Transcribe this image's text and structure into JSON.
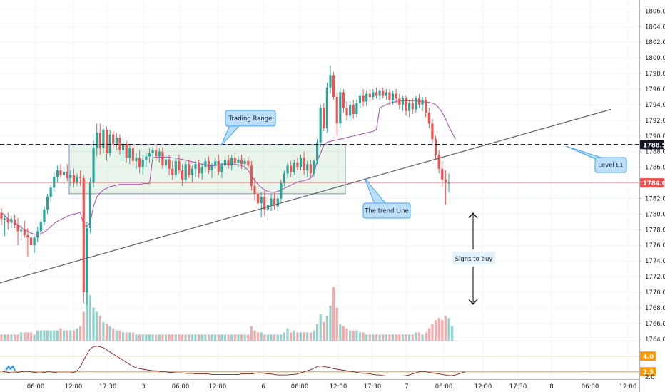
{
  "chart_data": {
    "type": "candlestick",
    "y_axis": {
      "range": [
        1763.8,
        1807.4
      ],
      "ticks": [
        "1806.0",
        "1804.0",
        "1802.0",
        "1800.0",
        "1798.0",
        "1796.0",
        "1794.0",
        "1792.0",
        "1790.0",
        "1788.0",
        "1786.0",
        "1784.0",
        "1782.0",
        "1780.0",
        "1778.0",
        "1776.0",
        "1774.0",
        "1772.0",
        "1770.0",
        "1768.0",
        "1766.0",
        "1764.0"
      ]
    },
    "x_axis": {
      "ticks": [
        "06:00",
        "12:00",
        "17:30",
        "3",
        "06:00",
        "12:00",
        "6",
        "06:00",
        "12:00",
        "17:30",
        "7",
        "06:00",
        "12:00",
        "17:30",
        "8",
        "06:00",
        "12:00"
      ]
    },
    "price_tags": [
      {
        "label": "1788.9",
        "value": 1788.9,
        "style": "dark"
      },
      {
        "label": "1784.0",
        "value": 1784.0,
        "style": "red"
      }
    ],
    "indicator_tags": [
      {
        "label": "4.0",
        "value": 4.0
      },
      {
        "label": "2.5",
        "value": 2.5
      }
    ],
    "horizontal_line": {
      "value": 1788.9,
      "style": "dashed"
    },
    "trading_range_box": {
      "low": 1782.6,
      "high": 1788.9
    },
    "trend_line": {
      "from_value": 1771.2,
      "to_value": 1793.4
    },
    "annotations": [
      {
        "name": "trading-range",
        "text": "Trading Range"
      },
      {
        "name": "trend-line",
        "text": "The trend Line"
      },
      {
        "name": "level-l1",
        "text": "Level L1"
      },
      {
        "name": "signs-to-buy",
        "text": "Signs to buy"
      }
    ],
    "candles": [
      {
        "o": 1780.2,
        "h": 1780.8,
        "l": 1778.6,
        "c": 1779.4
      },
      {
        "o": 1779.4,
        "h": 1780.0,
        "l": 1777.2,
        "c": 1779.4
      },
      {
        "o": 1779.4,
        "h": 1780.2,
        "l": 1778.0,
        "c": 1778.9
      },
      {
        "o": 1778.9,
        "h": 1779.8,
        "l": 1778.2,
        "c": 1779.4
      },
      {
        "o": 1779.3,
        "h": 1779.9,
        "l": 1778.2,
        "c": 1778.6
      },
      {
        "o": 1778.6,
        "h": 1779.5,
        "l": 1776.0,
        "c": 1777.8
      },
      {
        "o": 1777.8,
        "h": 1778.6,
        "l": 1776.6,
        "c": 1778.0
      },
      {
        "o": 1778.0,
        "h": 1779.2,
        "l": 1777.0,
        "c": 1777.3
      },
      {
        "o": 1777.3,
        "h": 1778.2,
        "l": 1774.6,
        "c": 1777.0
      },
      {
        "o": 1777.0,
        "h": 1777.6,
        "l": 1773.4,
        "c": 1776.0
      },
      {
        "o": 1776.0,
        "h": 1777.2,
        "l": 1775.0,
        "c": 1777.0
      },
      {
        "o": 1777.0,
        "h": 1778.4,
        "l": 1776.4,
        "c": 1777.8
      },
      {
        "o": 1777.8,
        "h": 1779.4,
        "l": 1777.2,
        "c": 1779.0
      },
      {
        "o": 1779.0,
        "h": 1781.0,
        "l": 1778.6,
        "c": 1780.6
      },
      {
        "o": 1780.6,
        "h": 1782.6,
        "l": 1780.0,
        "c": 1782.2
      },
      {
        "o": 1782.2,
        "h": 1783.8,
        "l": 1781.6,
        "c": 1783.4
      },
      {
        "o": 1783.4,
        "h": 1785.4,
        "l": 1782.8,
        "c": 1784.8
      },
      {
        "o": 1784.8,
        "h": 1786.2,
        "l": 1784.0,
        "c": 1785.6
      },
      {
        "o": 1785.6,
        "h": 1786.4,
        "l": 1784.6,
        "c": 1785.0
      },
      {
        "o": 1785.0,
        "h": 1786.0,
        "l": 1783.8,
        "c": 1785.4
      },
      {
        "o": 1785.4,
        "h": 1786.4,
        "l": 1784.2,
        "c": 1784.6
      },
      {
        "o": 1784.6,
        "h": 1785.6,
        "l": 1783.6,
        "c": 1785.0
      },
      {
        "o": 1785.0,
        "h": 1785.8,
        "l": 1783.4,
        "c": 1784.0
      },
      {
        "o": 1784.0,
        "h": 1785.2,
        "l": 1783.6,
        "c": 1784.8
      },
      {
        "o": 1784.8,
        "h": 1785.6,
        "l": 1783.6,
        "c": 1784.6
      },
      {
        "o": 1784.6,
        "h": 1785.0,
        "l": 1768.6,
        "c": 1770.0
      },
      {
        "o": 1770.0,
        "h": 1779.0,
        "l": 1768.4,
        "c": 1778.2
      },
      {
        "o": 1778.2,
        "h": 1784.6,
        "l": 1777.6,
        "c": 1784.0
      },
      {
        "o": 1784.0,
        "h": 1789.4,
        "l": 1783.4,
        "c": 1788.4
      },
      {
        "o": 1788.4,
        "h": 1791.6,
        "l": 1787.4,
        "c": 1790.4
      },
      {
        "o": 1790.4,
        "h": 1791.6,
        "l": 1787.6,
        "c": 1788.4
      },
      {
        "o": 1788.4,
        "h": 1791.0,
        "l": 1787.8,
        "c": 1790.8
      },
      {
        "o": 1790.8,
        "h": 1791.2,
        "l": 1786.8,
        "c": 1787.8
      },
      {
        "o": 1787.8,
        "h": 1790.8,
        "l": 1787.4,
        "c": 1790.2
      },
      {
        "o": 1790.2,
        "h": 1790.6,
        "l": 1788.4,
        "c": 1789.0
      },
      {
        "o": 1789.0,
        "h": 1790.4,
        "l": 1788.2,
        "c": 1789.8
      },
      {
        "o": 1789.8,
        "h": 1790.2,
        "l": 1787.6,
        "c": 1788.2
      },
      {
        "o": 1788.2,
        "h": 1789.6,
        "l": 1786.8,
        "c": 1789.0
      },
      {
        "o": 1789.0,
        "h": 1789.4,
        "l": 1786.6,
        "c": 1787.2
      },
      {
        "o": 1787.2,
        "h": 1788.8,
        "l": 1786.4,
        "c": 1788.4
      },
      {
        "o": 1788.4,
        "h": 1788.8,
        "l": 1786.2,
        "c": 1786.8
      },
      {
        "o": 1786.8,
        "h": 1787.8,
        "l": 1785.8,
        "c": 1787.2
      },
      {
        "o": 1787.2,
        "h": 1788.2,
        "l": 1785.2,
        "c": 1786.0
      },
      {
        "o": 1786.0,
        "h": 1787.6,
        "l": 1785.0,
        "c": 1787.0
      },
      {
        "o": 1787.0,
        "h": 1787.8,
        "l": 1786.0,
        "c": 1787.4
      },
      {
        "o": 1787.4,
        "h": 1788.4,
        "l": 1786.6,
        "c": 1787.8
      },
      {
        "o": 1787.8,
        "h": 1788.6,
        "l": 1786.8,
        "c": 1788.2
      },
      {
        "o": 1788.2,
        "h": 1788.8,
        "l": 1786.8,
        "c": 1787.4
      },
      {
        "o": 1787.4,
        "h": 1788.4,
        "l": 1786.6,
        "c": 1788.0
      },
      {
        "o": 1788.0,
        "h": 1788.6,
        "l": 1785.8,
        "c": 1786.2
      },
      {
        "o": 1786.2,
        "h": 1787.6,
        "l": 1785.4,
        "c": 1787.0
      },
      {
        "o": 1787.0,
        "h": 1787.6,
        "l": 1785.0,
        "c": 1785.8
      },
      {
        "o": 1785.8,
        "h": 1786.8,
        "l": 1784.4,
        "c": 1785.0
      },
      {
        "o": 1785.0,
        "h": 1787.2,
        "l": 1784.6,
        "c": 1786.8
      },
      {
        "o": 1786.8,
        "h": 1787.6,
        "l": 1785.2,
        "c": 1785.6
      },
      {
        "o": 1785.6,
        "h": 1786.4,
        "l": 1783.6,
        "c": 1784.4
      },
      {
        "o": 1784.4,
        "h": 1786.8,
        "l": 1784.0,
        "c": 1786.4
      },
      {
        "o": 1786.4,
        "h": 1787.0,
        "l": 1784.6,
        "c": 1785.0
      },
      {
        "o": 1785.0,
        "h": 1786.2,
        "l": 1784.0,
        "c": 1785.8
      },
      {
        "o": 1785.8,
        "h": 1786.8,
        "l": 1784.8,
        "c": 1786.4
      },
      {
        "o": 1786.4,
        "h": 1787.0,
        "l": 1784.6,
        "c": 1785.2
      },
      {
        "o": 1785.2,
        "h": 1786.4,
        "l": 1784.4,
        "c": 1786.0
      },
      {
        "o": 1786.0,
        "h": 1787.2,
        "l": 1785.4,
        "c": 1786.8
      },
      {
        "o": 1786.8,
        "h": 1787.4,
        "l": 1785.2,
        "c": 1785.6
      },
      {
        "o": 1785.6,
        "h": 1786.6,
        "l": 1784.6,
        "c": 1786.2
      },
      {
        "o": 1786.2,
        "h": 1787.2,
        "l": 1785.8,
        "c": 1786.8
      },
      {
        "o": 1786.8,
        "h": 1787.6,
        "l": 1785.0,
        "c": 1785.4
      },
      {
        "o": 1785.4,
        "h": 1786.6,
        "l": 1784.6,
        "c": 1786.2
      },
      {
        "o": 1786.2,
        "h": 1787.4,
        "l": 1785.6,
        "c": 1787.0
      },
      {
        "o": 1787.0,
        "h": 1787.6,
        "l": 1785.8,
        "c": 1786.2
      },
      {
        "o": 1786.2,
        "h": 1787.6,
        "l": 1785.6,
        "c": 1787.2
      },
      {
        "o": 1787.2,
        "h": 1787.8,
        "l": 1786.2,
        "c": 1786.6
      },
      {
        "o": 1786.6,
        "h": 1787.4,
        "l": 1786.0,
        "c": 1787.0
      },
      {
        "o": 1787.0,
        "h": 1787.6,
        "l": 1785.8,
        "c": 1786.4
      },
      {
        "o": 1786.4,
        "h": 1787.2,
        "l": 1785.6,
        "c": 1786.8
      },
      {
        "o": 1786.8,
        "h": 1787.4,
        "l": 1785.8,
        "c": 1786.2
      },
      {
        "o": 1786.2,
        "h": 1786.8,
        "l": 1783.0,
        "c": 1783.6
      },
      {
        "o": 1783.6,
        "h": 1784.6,
        "l": 1781.8,
        "c": 1782.6
      },
      {
        "o": 1782.6,
        "h": 1783.6,
        "l": 1780.6,
        "c": 1781.4
      },
      {
        "o": 1781.4,
        "h": 1782.8,
        "l": 1779.6,
        "c": 1782.2
      },
      {
        "o": 1782.2,
        "h": 1783.0,
        "l": 1779.8,
        "c": 1780.6
      },
      {
        "o": 1780.6,
        "h": 1781.8,
        "l": 1779.2,
        "c": 1781.2
      },
      {
        "o": 1781.2,
        "h": 1782.6,
        "l": 1780.4,
        "c": 1782.0
      },
      {
        "o": 1782.0,
        "h": 1782.8,
        "l": 1780.6,
        "c": 1781.0
      },
      {
        "o": 1781.0,
        "h": 1782.4,
        "l": 1780.4,
        "c": 1782.0
      },
      {
        "o": 1782.0,
        "h": 1784.4,
        "l": 1781.6,
        "c": 1784.0
      },
      {
        "o": 1784.0,
        "h": 1785.6,
        "l": 1783.6,
        "c": 1785.2
      },
      {
        "o": 1785.2,
        "h": 1786.6,
        "l": 1784.6,
        "c": 1786.2
      },
      {
        "o": 1786.2,
        "h": 1786.8,
        "l": 1784.8,
        "c": 1785.4
      },
      {
        "o": 1785.4,
        "h": 1787.0,
        "l": 1785.0,
        "c": 1786.6
      },
      {
        "o": 1786.6,
        "h": 1787.2,
        "l": 1785.6,
        "c": 1786.0
      },
      {
        "o": 1786.0,
        "h": 1787.6,
        "l": 1785.6,
        "c": 1787.2
      },
      {
        "o": 1787.2,
        "h": 1788.0,
        "l": 1785.0,
        "c": 1785.6
      },
      {
        "o": 1785.6,
        "h": 1786.8,
        "l": 1784.8,
        "c": 1786.4
      },
      {
        "o": 1786.4,
        "h": 1787.0,
        "l": 1784.6,
        "c": 1785.2
      },
      {
        "o": 1785.2,
        "h": 1787.0,
        "l": 1784.8,
        "c": 1786.8
      },
      {
        "o": 1786.8,
        "h": 1789.6,
        "l": 1786.4,
        "c": 1789.2
      },
      {
        "o": 1789.2,
        "h": 1794.0,
        "l": 1788.6,
        "c": 1793.6
      },
      {
        "o": 1793.6,
        "h": 1794.2,
        "l": 1790.6,
        "c": 1791.0
      },
      {
        "o": 1791.0,
        "h": 1796.8,
        "l": 1790.4,
        "c": 1796.2
      },
      {
        "o": 1796.2,
        "h": 1799.0,
        "l": 1795.4,
        "c": 1797.8
      },
      {
        "o": 1797.8,
        "h": 1798.2,
        "l": 1794.6,
        "c": 1795.0
      },
      {
        "o": 1795.0,
        "h": 1795.6,
        "l": 1790.0,
        "c": 1791.6
      },
      {
        "o": 1791.6,
        "h": 1796.2,
        "l": 1791.0,
        "c": 1795.6
      },
      {
        "o": 1795.6,
        "h": 1796.0,
        "l": 1793.0,
        "c": 1793.6
      },
      {
        "o": 1793.6,
        "h": 1794.4,
        "l": 1792.0,
        "c": 1792.6
      },
      {
        "o": 1792.6,
        "h": 1794.4,
        "l": 1792.0,
        "c": 1794.0
      },
      {
        "o": 1794.0,
        "h": 1794.6,
        "l": 1792.2,
        "c": 1792.8
      },
      {
        "o": 1792.8,
        "h": 1794.6,
        "l": 1792.4,
        "c": 1794.2
      },
      {
        "o": 1794.2,
        "h": 1795.6,
        "l": 1793.6,
        "c": 1795.2
      },
      {
        "o": 1795.2,
        "h": 1796.0,
        "l": 1793.8,
        "c": 1794.4
      },
      {
        "o": 1794.4,
        "h": 1795.8,
        "l": 1793.8,
        "c": 1795.4
      },
      {
        "o": 1795.4,
        "h": 1796.0,
        "l": 1794.4,
        "c": 1795.0
      },
      {
        "o": 1795.0,
        "h": 1796.0,
        "l": 1794.6,
        "c": 1795.6
      },
      {
        "o": 1795.6,
        "h": 1796.2,
        "l": 1794.8,
        "c": 1795.2
      },
      {
        "o": 1795.2,
        "h": 1796.0,
        "l": 1794.6,
        "c": 1795.8
      },
      {
        "o": 1795.8,
        "h": 1796.2,
        "l": 1794.8,
        "c": 1795.2
      },
      {
        "o": 1795.2,
        "h": 1796.0,
        "l": 1794.6,
        "c": 1795.6
      },
      {
        "o": 1795.6,
        "h": 1796.0,
        "l": 1794.0,
        "c": 1794.6
      },
      {
        "o": 1794.6,
        "h": 1795.8,
        "l": 1794.0,
        "c": 1795.4
      },
      {
        "o": 1795.4,
        "h": 1796.0,
        "l": 1794.2,
        "c": 1794.8
      },
      {
        "o": 1794.8,
        "h": 1795.4,
        "l": 1793.4,
        "c": 1794.0
      },
      {
        "o": 1794.0,
        "h": 1795.2,
        "l": 1793.2,
        "c": 1794.8
      },
      {
        "o": 1794.8,
        "h": 1795.2,
        "l": 1792.6,
        "c": 1793.2
      },
      {
        "o": 1793.2,
        "h": 1794.6,
        "l": 1792.4,
        "c": 1794.2
      },
      {
        "o": 1794.2,
        "h": 1794.8,
        "l": 1792.8,
        "c": 1793.4
      },
      {
        "o": 1793.4,
        "h": 1795.2,
        "l": 1793.0,
        "c": 1794.8
      },
      {
        "o": 1794.8,
        "h": 1795.4,
        "l": 1793.6,
        "c": 1794.0
      },
      {
        "o": 1794.0,
        "h": 1795.0,
        "l": 1793.2,
        "c": 1794.6
      },
      {
        "o": 1794.6,
        "h": 1795.0,
        "l": 1792.4,
        "c": 1793.0
      },
      {
        "o": 1793.0,
        "h": 1793.6,
        "l": 1791.0,
        "c": 1791.6
      },
      {
        "o": 1791.6,
        "h": 1792.2,
        "l": 1789.0,
        "c": 1789.6
      },
      {
        "o": 1789.6,
        "h": 1790.0,
        "l": 1787.0,
        "c": 1787.6
      },
      {
        "o": 1787.6,
        "h": 1788.2,
        "l": 1785.2,
        "c": 1785.8
      },
      {
        "o": 1785.8,
        "h": 1786.8,
        "l": 1783.4,
        "c": 1784.4
      },
      {
        "o": 1784.4,
        "h": 1785.6,
        "l": 1781.2,
        "c": 1784.0
      },
      {
        "o": 1784.0,
        "h": 1785.2,
        "l": 1782.8,
        "c": 1784.0
      }
    ],
    "volumes": [
      3,
      3,
      3,
      3,
      3,
      3,
      4,
      4,
      4,
      4,
      3,
      5,
      5,
      5,
      5,
      5,
      5,
      5,
      6,
      5,
      5,
      5,
      5,
      6,
      7,
      14,
      26,
      22,
      16,
      14,
      12,
      9,
      8,
      7,
      6,
      5,
      5,
      4,
      4,
      4,
      4,
      3,
      3,
      3,
      3,
      3,
      3,
      3,
      3,
      3,
      3,
      3,
      3,
      3,
      3,
      3,
      3,
      3,
      3,
      3,
      3,
      3,
      3,
      3,
      3,
      3,
      3,
      3,
      3,
      3,
      3,
      3,
      3,
      3,
      3,
      3,
      7,
      5,
      4,
      4,
      3,
      3,
      3,
      3,
      3,
      3,
      4,
      6,
      4,
      5,
      4,
      4,
      4,
      4,
      4,
      5,
      8,
      13,
      9,
      12,
      17,
      26,
      16,
      8,
      7,
      6,
      5,
      5,
      5,
      4,
      4,
      3,
      3,
      3,
      3,
      3,
      3,
      3,
      3,
      3,
      3,
      3,
      3,
      3,
      3,
      3,
      4,
      4,
      3,
      4,
      6,
      8,
      10,
      11,
      10,
      12,
      11,
      7
    ],
    "ma_values": [
      1780.2,
      1779.8,
      1779.4,
      1779.1,
      1778.9,
      1778.6,
      1778.3,
      1778.0,
      1777.8,
      1777.6,
      1777.4,
      1777.4,
      1777.5,
      1777.7,
      1778.0,
      1778.4,
      1778.8,
      1779.1,
      1779.3,
      1779.5,
      1779.7,
      1779.9,
      1780.0,
      1780.1,
      1780.2,
      1778.6,
      1778.4,
      1779.0,
      1781.0,
      1782.2,
      1782.7,
      1783.1,
      1783.3,
      1783.5,
      1783.6,
      1783.7,
      1783.8,
      1783.8,
      1783.8,
      1783.8,
      1783.8,
      1783.8,
      1783.8,
      1783.9,
      1783.9,
      1783.9,
      1787.2,
      1787.3,
      1787.3,
      1787.3,
      1787.3,
      1787.3,
      1787.2,
      1787.2,
      1787.1,
      1787.0,
      1786.9,
      1786.8,
      1786.7,
      1786.6,
      1786.5,
      1786.4,
      1786.3,
      1786.2,
      1786.2,
      1786.2,
      1786.3,
      1786.4,
      1786.4,
      1786.4,
      1786.4,
      1786.4,
      1786.3,
      1786.2,
      1786.0,
      1785.6,
      1784.9,
      1784.3,
      1783.8,
      1783.4,
      1783.1,
      1782.9,
      1782.8,
      1782.8,
      1782.9,
      1783.1,
      1783.3,
      1783.5,
      1783.7,
      1783.9,
      1784.1,
      1784.2,
      1784.3,
      1784.4,
      1784.6,
      1785.2,
      1786.8,
      1787.8,
      1788.8,
      1789.2,
      1789.3,
      1789.4,
      1789.5,
      1789.6,
      1789.7,
      1789.8,
      1789.9,
      1790.0,
      1790.1,
      1790.2,
      1790.3,
      1790.4,
      1790.5,
      1790.6,
      1790.8,
      1793.6,
      1793.8,
      1794.0,
      1794.2,
      1794.3,
      1794.4,
      1794.5,
      1794.5,
      1794.5,
      1794.5,
      1794.5,
      1794.5,
      1794.4,
      1794.4,
      1794.3,
      1794.3,
      1794.2,
      1794.0,
      1793.6,
      1793.0,
      1792.2,
      1791.2,
      1790.4,
      1789.6
    ]
  }
}
